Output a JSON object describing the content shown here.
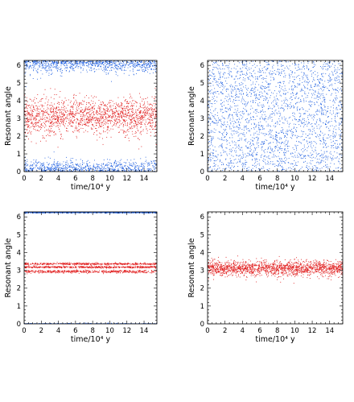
{
  "figure": {
    "colors": {
      "blue": "#1f5fe0",
      "red": "#e01818",
      "axis": "#000000"
    }
  },
  "chart_data": [
    {
      "type": "scatter",
      "panel": "top-left",
      "xlabel": "time/10⁴ y",
      "ylabel": "Resonant angle",
      "xlim": [
        0,
        15.5
      ],
      "ylim": [
        0,
        6.28
      ],
      "xticks": [
        0,
        2,
        4,
        6,
        8,
        10,
        12,
        14
      ],
      "yticks": [
        0,
        1,
        2,
        3,
        4,
        5,
        6
      ],
      "grid": false,
      "series": [
        {
          "color": "#1f5fe0",
          "description_bands": [
            {
              "center": 6.28,
              "halfwidth": 0.7
            },
            {
              "center": 0.0,
              "halfwidth": 0.7
            }
          ],
          "distribution": "librating about 0 (wrapping at 2π), amplitude narrowing near t=6-12"
        },
        {
          "color": "#e01818",
          "description_bands": [
            {
              "center": 3.14,
              "halfwidth": 1.1
            }
          ],
          "distribution": "librating about π with amplitude ~1.0-1.4"
        }
      ]
    },
    {
      "type": "scatter",
      "panel": "top-right",
      "xlabel": "time/10⁴ y",
      "ylabel": "Resonant angle",
      "xlim": [
        0,
        15.5
      ],
      "ylim": [
        0,
        6.28
      ],
      "xticks": [
        0,
        2,
        4,
        6,
        8,
        10,
        12,
        14
      ],
      "yticks": [
        0,
        1,
        2,
        3,
        4,
        5,
        6
      ],
      "grid": false,
      "series": [
        {
          "color": "#1f5fe0",
          "description_bands": [
            {
              "center": 3.14,
              "halfwidth": 3.14
            }
          ],
          "distribution": "circulating, points spread uniformly over 0 to 2π"
        }
      ]
    },
    {
      "type": "scatter",
      "panel": "bottom-left",
      "xlabel": "time/10⁴ y",
      "ylabel": "Resonant angle",
      "xlim": [
        0,
        15.5
      ],
      "ylim": [
        0,
        6.28
      ],
      "xticks": [
        0,
        2,
        4,
        6,
        8,
        10,
        12,
        14
      ],
      "yticks": [
        0,
        1,
        2,
        3,
        4,
        5,
        6
      ],
      "grid": false,
      "series": [
        {
          "color": "#1f5fe0",
          "description_bands": [
            {
              "center": 0.0,
              "halfwidth": 0.04
            },
            {
              "center": 6.28,
              "halfwidth": 0.04
            }
          ],
          "distribution": "tightly locked at 0 / 2π"
        },
        {
          "color": "#e01818",
          "description_bands": [
            {
              "center": 3.38,
              "halfwidth": 0.06
            },
            {
              "center": 3.2,
              "halfwidth": 0.05
            },
            {
              "center": 2.95,
              "halfwidth": 0.08
            }
          ],
          "distribution": "three narrow bands around π (~2.8 to 3.5)"
        }
      ]
    },
    {
      "type": "scatter",
      "panel": "bottom-right",
      "xlabel": "time/10⁴ y",
      "ylabel": "Resonant angle",
      "xlim": [
        0,
        15.5
      ],
      "ylim": [
        0,
        6.28
      ],
      "xticks": [
        0,
        2,
        4,
        6,
        8,
        10,
        12,
        14
      ],
      "yticks": [
        0,
        1,
        2,
        3,
        4,
        5,
        6
      ],
      "grid": false,
      "series": [
        {
          "color": "#e01818",
          "description_bands": [
            {
              "center": 3.14,
              "halfwidth": 0.42
            }
          ],
          "distribution": "librating about π with amplitude ~0.4"
        }
      ]
    }
  ]
}
